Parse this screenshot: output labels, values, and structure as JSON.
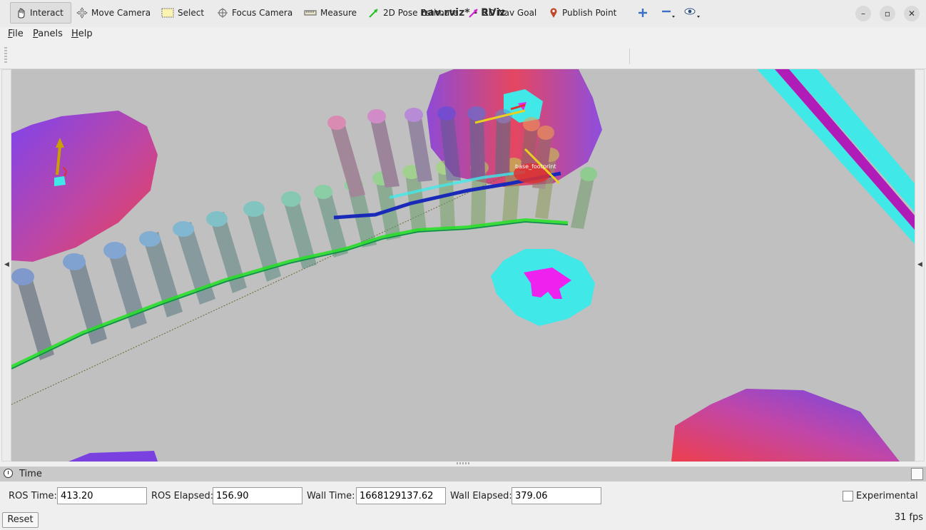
{
  "window": {
    "title": "nav.rviz* - RViz",
    "controls": [
      "minimize-icon",
      "restore-icon",
      "close-icon"
    ]
  },
  "menu": {
    "file_prefix": "F",
    "file_rest": "ile",
    "panels_prefix": "P",
    "panels_rest": "anels",
    "help_prefix": "H",
    "help_rest": "elp"
  },
  "toolbar": {
    "interact": "Interact",
    "move_camera": "Move Camera",
    "select": "Select",
    "focus_camera": "Focus Camera",
    "measure": "Measure",
    "pose_estimate": "2D Pose Estimate",
    "nav_goal": "2D Nav Goal",
    "publish_point": "Publish Point",
    "active_tool": "Interact"
  },
  "viewport": {
    "robot_label": "base_footprint",
    "background_color": "#c0c0c0"
  },
  "time_panel": {
    "title": "Time",
    "ros_time_label": "ROS Time:",
    "ros_time_value": "413.20",
    "ros_elapsed_label": "ROS Elapsed:",
    "ros_elapsed_value": "156.90",
    "wall_time_label": "Wall Time:",
    "wall_time_value": "1668129137.62",
    "wall_elapsed_label": "Wall Elapsed:",
    "wall_elapsed_value": "379.06",
    "experimental_label": "Experimental",
    "experimental_checked": false,
    "reset_label": "Reset",
    "fps": "31 fps"
  }
}
